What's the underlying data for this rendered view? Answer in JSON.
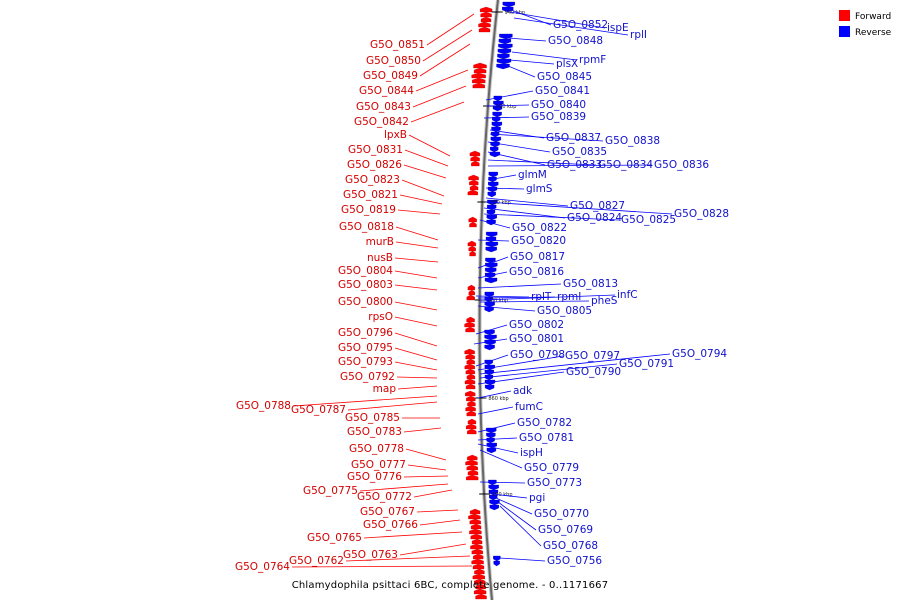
{
  "caption": "Chlamydophila psittaci 6BC, complete genome. - 0..1171667",
  "legend": [
    {
      "label": "Forward",
      "color": "#ff0000"
    },
    {
      "label": "Reverse",
      "color": "#0000ff"
    }
  ],
  "ticks": [
    "940 kbp",
    "920 kbp",
    "900 kbp",
    "880 kbp",
    "860 kbp",
    "840 kbp"
  ],
  "forward_labels": [
    "G5O_0851",
    "G5O_0850",
    "G5O_0849",
    "G5O_0844",
    "G5O_0843",
    "G5O_0842",
    "lpxB",
    "G5O_0831",
    "G5O_0826",
    "G5O_0823",
    "G5O_0821",
    "G5O_0819",
    "G5O_0818",
    "murB",
    "nusB",
    "G5O_0804",
    "G5O_0803",
    "G5O_0800",
    "rpsO",
    "G5O_0796",
    "G5O_0795",
    "G5O_0793",
    "G5O_0792",
    "map",
    "G5O_0788",
    "G5O_0787",
    "G5O_0785",
    "G5O_0783",
    "G5O_0778",
    "G5O_0777",
    "G5O_0776",
    "G5O_0775",
    "G5O_0772",
    "G5O_0767",
    "G5O_0766",
    "G5O_0765",
    "G5O_0763",
    "G5O_0762",
    "G5O_0764"
  ],
  "reverse_labels": [
    "ispE",
    "rplI",
    "G5O_0852",
    "G5O_0848",
    "rpmF",
    "plsX",
    "G5O_0845",
    "G5O_0841",
    "G5O_0840",
    "G5O_0839",
    "G5O_0837",
    "G5O_0838",
    "G5O_0835",
    "G5O_0833",
    "G5O_0834",
    "G5O_0836",
    "glmM",
    "glmS",
    "G5O_0827",
    "G5O_0828",
    "G5O_0824",
    "G5O_0825",
    "G5O_0822",
    "G5O_0820",
    "G5O_0817",
    "G5O_0816",
    "G5O_0813",
    "rplT",
    "rpmI",
    "infC",
    "pheS",
    "G5O_0805",
    "G5O_0802",
    "G5O_0801",
    "G5O_0798",
    "G5O_0797",
    "G5O_0794",
    "G5O_0791",
    "G5O_0790",
    "adk",
    "fumC",
    "G5O_0782",
    "G5O_0781",
    "ispH",
    "G5O_0779",
    "G5O_0773",
    "pgi",
    "G5O_0770",
    "G5O_0769",
    "G5O_0768",
    "G5O_0756"
  ]
}
